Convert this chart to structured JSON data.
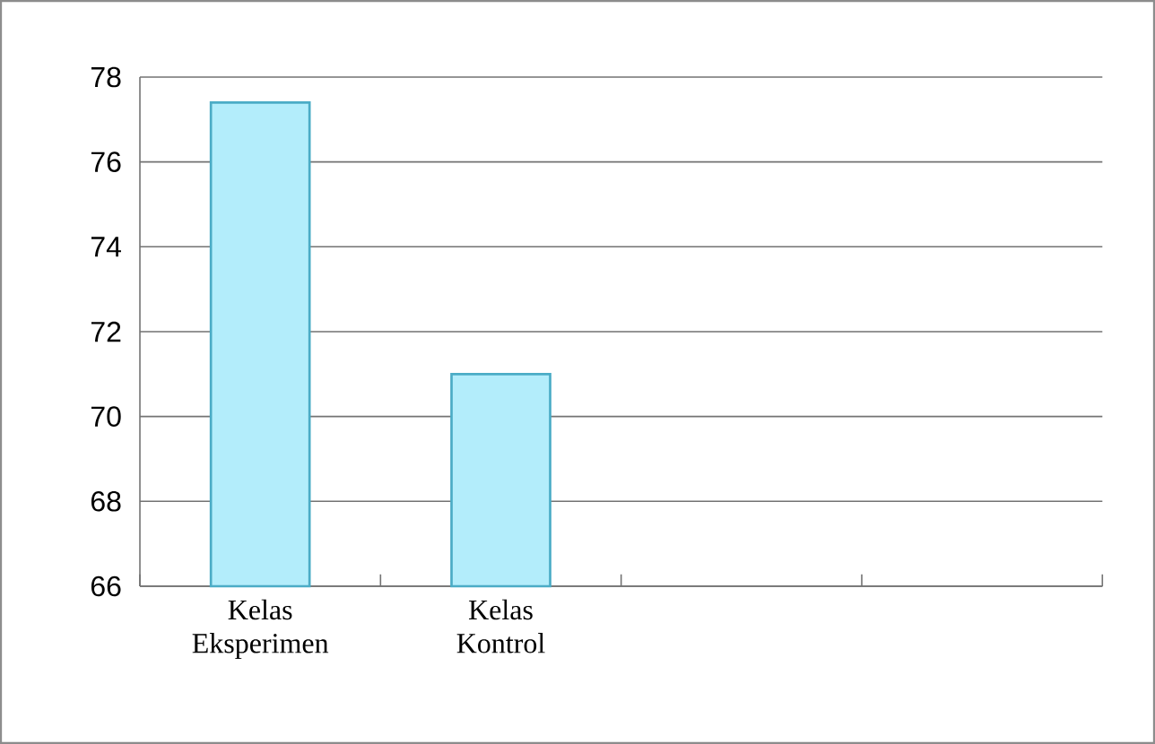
{
  "chart_data": {
    "type": "bar",
    "categories": [
      "Kelas Eksperimen",
      "Kelas Kontrol",
      null,
      null
    ],
    "values": [
      77.4,
      71.0,
      null,
      null
    ],
    "color": "#b3edfb",
    "ylim": [
      66,
      78
    ],
    "yticks": [
      66,
      68,
      70,
      72,
      74,
      76,
      78
    ],
    "grid": "y"
  }
}
